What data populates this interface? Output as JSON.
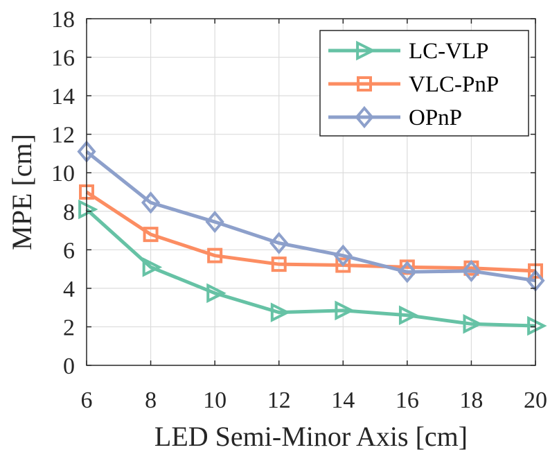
{
  "chart_data": {
    "type": "line",
    "title": "",
    "xlabel": "LED Semi-Minor Axis [cm]",
    "ylabel": "MPE [cm]",
    "x": [
      6,
      8,
      10,
      12,
      14,
      16,
      18,
      20
    ],
    "xlim": [
      6,
      20
    ],
    "ylim": [
      0,
      18
    ],
    "xticks": [
      "6",
      "8",
      "10",
      "12",
      "14",
      "16",
      "18",
      "20"
    ],
    "yticks": [
      "0",
      "2",
      "4",
      "6",
      "8",
      "10",
      "12",
      "14",
      "16",
      "18"
    ],
    "grid": true,
    "legend_position": "top-right",
    "series": [
      {
        "name": "LC-VLP",
        "marker": "triangle-right",
        "color": "#66c2a5",
        "values": [
          8.1,
          5.1,
          3.75,
          2.75,
          2.85,
          2.6,
          2.15,
          2.05
        ]
      },
      {
        "name": "VLC-PnP",
        "marker": "square",
        "color": "#fc8d62",
        "values": [
          9.0,
          6.8,
          5.7,
          5.25,
          5.2,
          5.1,
          5.05,
          4.9
        ]
      },
      {
        "name": "OPnP",
        "marker": "diamond",
        "color": "#8da0cb",
        "values": [
          11.1,
          8.45,
          7.45,
          6.35,
          5.7,
          4.85,
          4.9,
          4.4
        ]
      }
    ]
  }
}
